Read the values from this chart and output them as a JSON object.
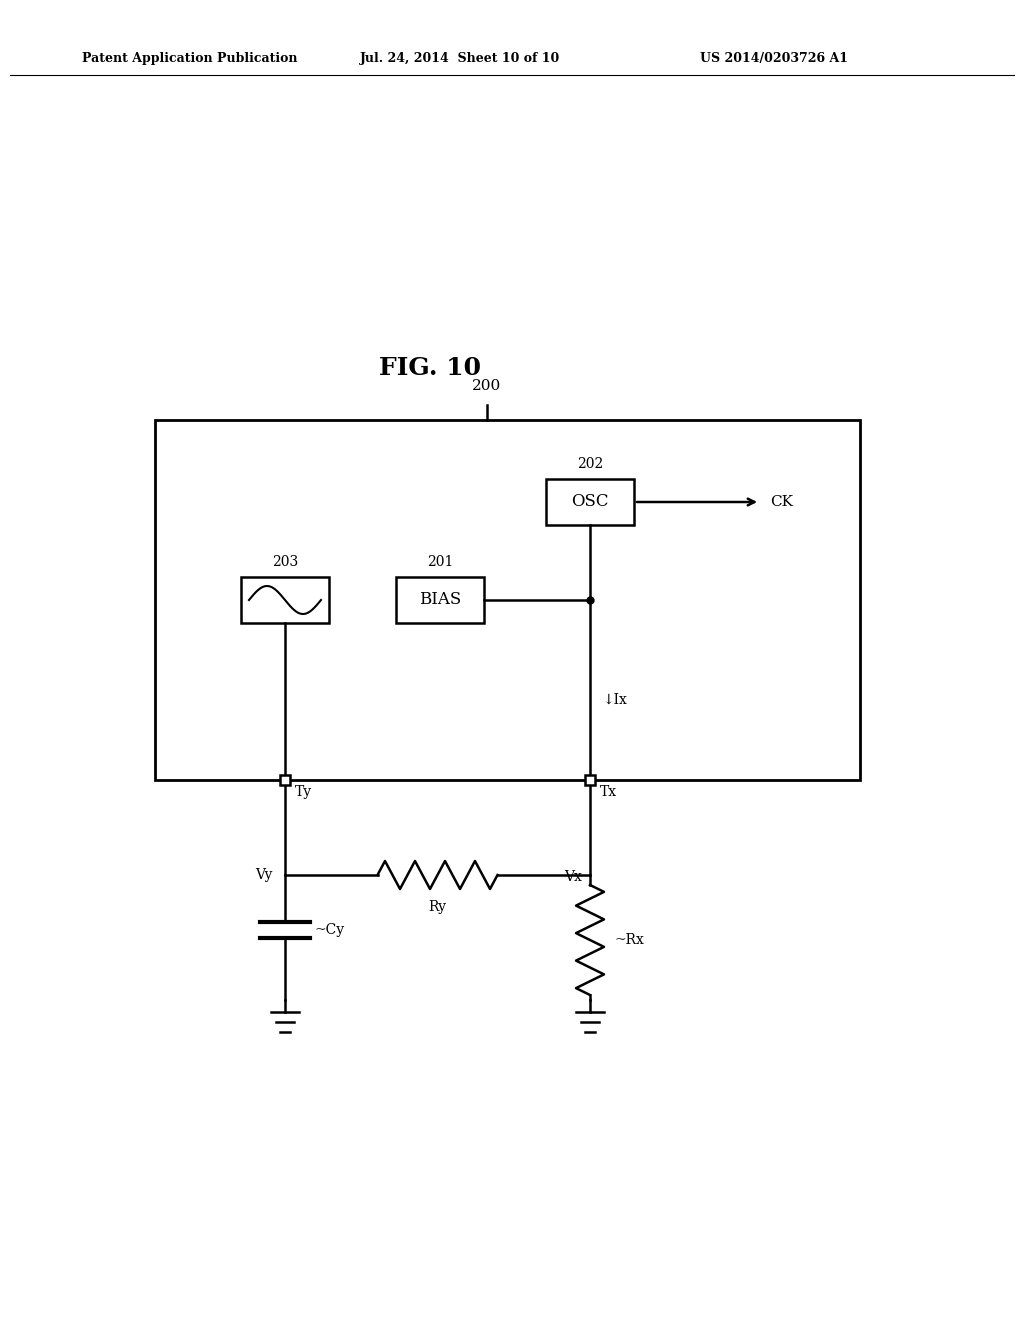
{
  "title": "FIG. 10",
  "patent_header_left": "Patent Application Publication",
  "patent_header_mid": "Jul. 24, 2014  Sheet 10 of 10",
  "patent_header_right": "US 2014/0203726 A1",
  "bg_color": "#ffffff",
  "line_color": "#000000",
  "box_label_200": "200",
  "box_label_202": "202",
  "box_label_203": "203",
  "box_label_201": "201",
  "label_OSC": "OSC",
  "label_BIAS": "BIAS",
  "label_CK": "CK",
  "label_Ty": "Ty",
  "label_Tx": "Tx",
  "label_Vy": "Vy",
  "label_Vx": "Vx",
  "label_Ry": "Ry",
  "label_Cy": "~Cy",
  "label_Rx": "~Rx",
  "label_Ix": "↓Ix"
}
